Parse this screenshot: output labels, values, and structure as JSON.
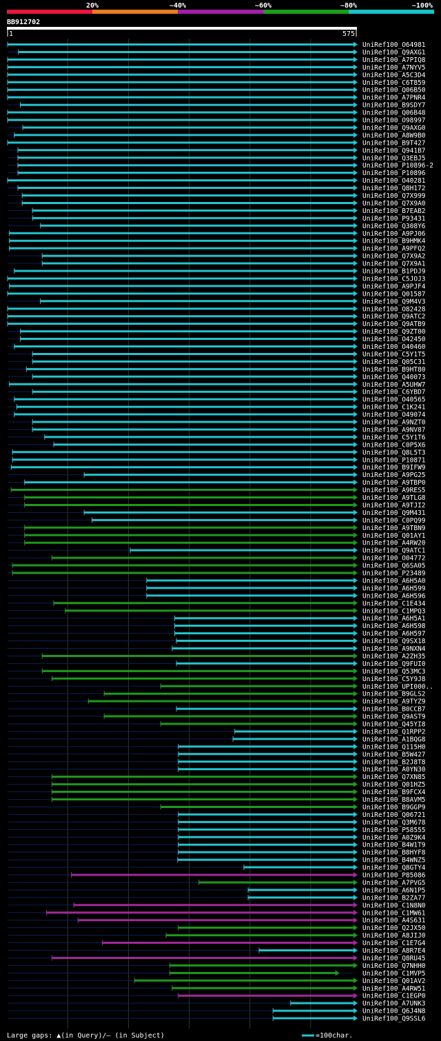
{
  "legend_scale": {
    "segments": [
      {
        "label": "",
        "color": "#e8163c"
      },
      {
        "label": "20%",
        "color": "#e87d1e"
      },
      {
        "label": "~40%",
        "color": "#a020a8"
      },
      {
        "label": "~60%",
        "color": "#1a9e1a"
      },
      {
        "label": "~80%",
        "color": "#19c3c8"
      }
    ],
    "end_label": "~100%"
  },
  "query": {
    "name": "BB912702",
    "start": "1",
    "end": "575",
    "length": 575
  },
  "colors": {
    "cyan": "#22c4d0",
    "green": "#1d9a1d",
    "magenta": "#a1289c",
    "track": "#0b1f58",
    "grid": "#2a3a2a"
  },
  "footer": {
    "gaps_text": "Large gaps: ▲(in Query)/— (in Subject)",
    "scale_text": "=100char."
  },
  "chart_data": {
    "type": "alignment",
    "x_range": [
      1,
      575
    ],
    "hits": [
      {
        "id": "UniRef100_O64981",
        "start": 1,
        "end": 575,
        "c": "cyan"
      },
      {
        "id": "UniRef100_Q9AXG1",
        "start": 19,
        "end": 575,
        "c": "cyan"
      },
      {
        "id": "UniRef100_A7PIQ8",
        "start": 1,
        "end": 575,
        "c": "cyan"
      },
      {
        "id": "UniRef100_A7NYV5",
        "start": 1,
        "end": 575,
        "c": "cyan"
      },
      {
        "id": "UniRef100_A5C3D4",
        "start": 1,
        "end": 575,
        "c": "cyan"
      },
      {
        "id": "UniRef100_C6T859",
        "start": 1,
        "end": 575,
        "c": "cyan"
      },
      {
        "id": "UniRef100_Q06B50",
        "start": 1,
        "end": 575,
        "c": "cyan"
      },
      {
        "id": "UniRef100_A7PNR4",
        "start": 1,
        "end": 575,
        "c": "cyan"
      },
      {
        "id": "UniRef100_B9SDY7",
        "start": 22,
        "end": 575,
        "c": "cyan"
      },
      {
        "id": "UniRef100_Q06B48",
        "start": 1,
        "end": 575,
        "c": "cyan"
      },
      {
        "id": "UniRef100_O98997",
        "start": 1,
        "end": 575,
        "c": "cyan"
      },
      {
        "id": "UniRef100_Q9AXG0",
        "start": 26,
        "end": 575,
        "c": "cyan"
      },
      {
        "id": "UniRef100_A8W9B0",
        "start": 12,
        "end": 575,
        "c": "cyan"
      },
      {
        "id": "UniRef100_B9T427",
        "start": 1,
        "end": 575,
        "c": "cyan"
      },
      {
        "id": "UniRef100_Q941B7",
        "start": 18,
        "end": 575,
        "c": "cyan"
      },
      {
        "id": "UniRef100_Q3EBJ5",
        "start": 18,
        "end": 575,
        "c": "cyan"
      },
      {
        "id": "UniRef100_P10896-2",
        "start": 18,
        "end": 575,
        "c": "cyan"
      },
      {
        "id": "UniRef100_P10896",
        "start": 18,
        "end": 575,
        "c": "cyan"
      },
      {
        "id": "UniRef100_O40281",
        "start": 1,
        "end": 575,
        "c": "cyan"
      },
      {
        "id": "UniRef100_Q8H172",
        "start": 18,
        "end": 575,
        "c": "cyan"
      },
      {
        "id": "UniRef100_Q7X999",
        "start": 25,
        "end": 575,
        "c": "cyan"
      },
      {
        "id": "UniRef100_Q7X9A0",
        "start": 25,
        "end": 575,
        "c": "cyan"
      },
      {
        "id": "UniRef100_B7EAB2",
        "start": 42,
        "end": 575,
        "c": "cyan"
      },
      {
        "id": "UniRef100_P93431",
        "start": 42,
        "end": 575,
        "c": "cyan"
      },
      {
        "id": "UniRef100_Q308Y6",
        "start": 55,
        "end": 575,
        "c": "cyan"
      },
      {
        "id": "UniRef100_A9PJ06",
        "start": 4,
        "end": 575,
        "c": "cyan"
      },
      {
        "id": "UniRef100_B9HMK4",
        "start": 4,
        "end": 575,
        "c": "cyan"
      },
      {
        "id": "UniRef100_A9PFQ2",
        "start": 4,
        "end": 575,
        "c": "cyan"
      },
      {
        "id": "UniRef100_Q7X9A2",
        "start": 58,
        "end": 575,
        "c": "cyan"
      },
      {
        "id": "UniRef100_Q7X9A1",
        "start": 58,
        "end": 575,
        "c": "cyan"
      },
      {
        "id": "UniRef100_B1PDJ9",
        "start": 12,
        "end": 575,
        "c": "cyan"
      },
      {
        "id": "UniRef100_C5JOJ3",
        "start": 1,
        "end": 575,
        "c": "cyan"
      },
      {
        "id": "UniRef100_A9PJF4",
        "start": 4,
        "end": 575,
        "c": "cyan"
      },
      {
        "id": "UniRef100_Q01587",
        "start": 1,
        "end": 575,
        "c": "cyan"
      },
      {
        "id": "UniRef100_Q9M4V3",
        "start": 55,
        "end": 575,
        "c": "cyan"
      },
      {
        "id": "UniRef100_O82428",
        "start": 1,
        "end": 575,
        "c": "cyan"
      },
      {
        "id": "UniRef100_Q9ATC2",
        "start": 1,
        "end": 575,
        "c": "cyan"
      },
      {
        "id": "UniRef100_Q9ATB9",
        "start": 1,
        "end": 575,
        "c": "cyan"
      },
      {
        "id": "UniRef100_Q9ZT00",
        "start": 22,
        "end": 575,
        "c": "cyan"
      },
      {
        "id": "UniRef100_O42450",
        "start": 22,
        "end": 575,
        "c": "cyan"
      },
      {
        "id": "UniRef100_O40460",
        "start": 12,
        "end": 575,
        "c": "cyan"
      },
      {
        "id": "UniRef100_C5Y1T5",
        "start": 42,
        "end": 575,
        "c": "cyan"
      },
      {
        "id": "UniRef100_Q05C31",
        "start": 42,
        "end": 575,
        "c": "cyan"
      },
      {
        "id": "UniRef100_B9HT80",
        "start": 32,
        "end": 575,
        "c": "cyan"
      },
      {
        "id": "UniRef100_Q40073",
        "start": 42,
        "end": 575,
        "c": "cyan"
      },
      {
        "id": "UniRef100_A5UHW7",
        "start": 4,
        "end": 575,
        "c": "cyan"
      },
      {
        "id": "UniRef100_C6YBD7",
        "start": 42,
        "end": 575,
        "c": "cyan"
      },
      {
        "id": "UniRef100_O40565",
        "start": 12,
        "end": 575,
        "c": "cyan"
      },
      {
        "id": "UniRef100_C1K241",
        "start": 16,
        "end": 575,
        "c": "cyan"
      },
      {
        "id": "UniRef100_O49074",
        "start": 12,
        "end": 575,
        "c": "cyan"
      },
      {
        "id": "UniRef100_A9NZT0",
        "start": 42,
        "end": 575,
        "c": "cyan"
      },
      {
        "id": "UniRef100_A9NV87",
        "start": 42,
        "end": 575,
        "c": "cyan"
      },
      {
        "id": "UniRef100_C5Y1T6",
        "start": 62,
        "end": 575,
        "c": "cyan"
      },
      {
        "id": "UniRef100_C0P5X6",
        "start": 77,
        "end": 575,
        "c": "cyan"
      },
      {
        "id": "UniRef100_Q8L5T3",
        "start": 9,
        "end": 575,
        "c": "cyan"
      },
      {
        "id": "UniRef100_P10871",
        "start": 9,
        "end": 575,
        "c": "cyan"
      },
      {
        "id": "UniRef100_B9IFW9",
        "start": 7,
        "end": 575,
        "c": "cyan"
      },
      {
        "id": "UniRef100_A9PG25",
        "start": 127,
        "end": 575,
        "c": "cyan"
      },
      {
        "id": "UniRef100_A9TBP0",
        "start": 29,
        "end": 575,
        "c": "cyan"
      },
      {
        "id": "UniRef100_A9RES5",
        "start": 7,
        "end": 575,
        "c": "green"
      },
      {
        "id": "UniRef100_A9TLG8",
        "start": 29,
        "end": 575,
        "c": "green"
      },
      {
        "id": "UniRef100_A9TJI2",
        "start": 29,
        "end": 575,
        "c": "green"
      },
      {
        "id": "UniRef100_Q9M431",
        "start": 127,
        "end": 575,
        "c": "cyan"
      },
      {
        "id": "UniRef100_C0PQ99",
        "start": 140,
        "end": 575,
        "c": "cyan"
      },
      {
        "id": "UniRef100_A9TBN9",
        "start": 29,
        "end": 575,
        "c": "green"
      },
      {
        "id": "UniRef100_Q01AY1",
        "start": 29,
        "end": 575,
        "c": "green"
      },
      {
        "id": "UniRef100_A4RW20",
        "start": 29,
        "end": 575,
        "c": "green"
      },
      {
        "id": "UniRef100_Q9ATC1",
        "start": 203,
        "end": 575,
        "c": "cyan"
      },
      {
        "id": "UniRef100_O04772",
        "start": 74,
        "end": 575,
        "c": "green"
      },
      {
        "id": "UniRef100_Q6SA05",
        "start": 9,
        "end": 575,
        "c": "green"
      },
      {
        "id": "UniRef100_P23489",
        "start": 9,
        "end": 575,
        "c": "green"
      },
      {
        "id": "UniRef100_A6H5A0",
        "start": 230,
        "end": 575,
        "c": "cyan"
      },
      {
        "id": "UniRef100_A6H599",
        "start": 230,
        "end": 575,
        "c": "cyan"
      },
      {
        "id": "UniRef100_A6H596",
        "start": 230,
        "end": 575,
        "c": "cyan"
      },
      {
        "id": "UniRef100_C1E434",
        "start": 77,
        "end": 575,
        "c": "green"
      },
      {
        "id": "UniRef100_C1MPQ3",
        "start": 96,
        "end": 575,
        "c": "green"
      },
      {
        "id": "UniRef100_A6H5A1",
        "start": 276,
        "end": 575,
        "c": "cyan"
      },
      {
        "id": "UniRef100_A6H598",
        "start": 276,
        "end": 575,
        "c": "cyan"
      },
      {
        "id": "UniRef100_A6H597",
        "start": 276,
        "end": 575,
        "c": "cyan"
      },
      {
        "id": "UniRef100_Q9SX18",
        "start": 279,
        "end": 575,
        "c": "cyan"
      },
      {
        "id": "UniRef100_A9NXN4",
        "start": 272,
        "end": 575,
        "c": "cyan"
      },
      {
        "id": "UniRef100_A2ZH35",
        "start": 58,
        "end": 575,
        "c": "green"
      },
      {
        "id": "UniRef100_Q9FUI0",
        "start": 279,
        "end": 575,
        "c": "cyan"
      },
      {
        "id": "UniRef100_Q53MC3",
        "start": 58,
        "end": 575,
        "c": "green"
      },
      {
        "id": "UniRef100_C5Y9J8",
        "start": 74,
        "end": 575,
        "c": "green"
      },
      {
        "id": "UniRef100_UPI000..",
        "start": 253,
        "end": 575,
        "c": "green"
      },
      {
        "id": "UniRef100_B9GLS2",
        "start": 160,
        "end": 575,
        "c": "green"
      },
      {
        "id": "UniRef100_A9TYZ9",
        "start": 134,
        "end": 575,
        "c": "green"
      },
      {
        "id": "UniRef100_B0CCB7",
        "start": 279,
        "end": 575,
        "c": "cyan"
      },
      {
        "id": "UniRef100_Q9AST9",
        "start": 160,
        "end": 575,
        "c": "green"
      },
      {
        "id": "UniRef100_Q45YI8",
        "start": 253,
        "end": 575,
        "c": "green"
      },
      {
        "id": "UniRef100_Q1RPP2",
        "start": 375,
        "end": 575,
        "c": "cyan"
      },
      {
        "id": "UniRef100_A1BQG8",
        "start": 372,
        "end": 575,
        "c": "cyan"
      },
      {
        "id": "UniRef100_Q115H0",
        "start": 282,
        "end": 575,
        "c": "cyan"
      },
      {
        "id": "UniRef100_B5W427",
        "start": 282,
        "end": 575,
        "c": "cyan"
      },
      {
        "id": "UniRef100_B2J8T8",
        "start": 282,
        "end": 575,
        "c": "cyan"
      },
      {
        "id": "UniRef100_A0YN30",
        "start": 282,
        "end": 575,
        "c": "cyan"
      },
      {
        "id": "UniRef100_Q7XN85",
        "start": 74,
        "end": 575,
        "c": "green"
      },
      {
        "id": "UniRef100_Q01HZ5",
        "start": 74,
        "end": 575,
        "c": "green"
      },
      {
        "id": "UniRef100_B9FCX4",
        "start": 74,
        "end": 575,
        "c": "green"
      },
      {
        "id": "UniRef100_B8AVM5",
        "start": 74,
        "end": 575,
        "c": "green"
      },
      {
        "id": "UniRef100_B9GGP9",
        "start": 253,
        "end": 575,
        "c": "green"
      },
      {
        "id": "UniRef100_Q06721",
        "start": 282,
        "end": 575,
        "c": "cyan"
      },
      {
        "id": "UniRef100_Q3M678",
        "start": 282,
        "end": 575,
        "c": "cyan"
      },
      {
        "id": "UniRef100_P58555",
        "start": 282,
        "end": 575,
        "c": "cyan"
      },
      {
        "id": "UniRef100_A0Z9K4",
        "start": 282,
        "end": 575,
        "c": "cyan"
      },
      {
        "id": "UniRef100_B4W1T9",
        "start": 282,
        "end": 575,
        "c": "cyan"
      },
      {
        "id": "UniRef100_B8HYF8",
        "start": 282,
        "end": 575,
        "c": "cyan"
      },
      {
        "id": "UniRef100_B4WNZ5",
        "start": 281,
        "end": 575,
        "c": "cyan"
      },
      {
        "id": "UniRef100_Q8GTY4",
        "start": 390,
        "end": 575,
        "c": "cyan"
      },
      {
        "id": "UniRef100_P85086",
        "start": 106,
        "end": 575,
        "c": "magenta"
      },
      {
        "id": "UniRef100_A7PVG5",
        "start": 316,
        "end": 575,
        "c": "green"
      },
      {
        "id": "UniRef100_A6N1P5",
        "start": 397,
        "end": 575,
        "c": "cyan"
      },
      {
        "id": "UniRef100_B2ZA77",
        "start": 397,
        "end": 575,
        "c": "cyan"
      },
      {
        "id": "UniRef100_C1N8N0",
        "start": 110,
        "end": 575,
        "c": "magenta"
      },
      {
        "id": "UniRef100_C1MW61",
        "start": 65,
        "end": 575,
        "c": "magenta"
      },
      {
        "id": "UniRef100_A4S631",
        "start": 117,
        "end": 575,
        "c": "magenta"
      },
      {
        "id": "UniRef100_Q2JX50",
        "start": 282,
        "end": 575,
        "c": "green"
      },
      {
        "id": "UniRef100_A8JIJ0",
        "start": 262,
        "end": 575,
        "c": "green"
      },
      {
        "id": "UniRef100_C1E7G4",
        "start": 157,
        "end": 575,
        "c": "magenta"
      },
      {
        "id": "UniRef100_A8R7E4",
        "start": 415,
        "end": 575,
        "c": "cyan"
      },
      {
        "id": "UniRef100_Q8RU45",
        "start": 74,
        "end": 575,
        "c": "magenta"
      },
      {
        "id": "UniRef100_Q7NHH0",
        "start": 268,
        "end": 575,
        "c": "green"
      },
      {
        "id": "UniRef100_C1MVP5",
        "start": 268,
        "end": 545,
        "c": "green"
      },
      {
        "id": "UniRef100_Q01AV2",
        "start": 210,
        "end": 575,
        "c": "green"
      },
      {
        "id": "UniRef100_A4RW51",
        "start": 272,
        "end": 575,
        "c": "green"
      },
      {
        "id": "UniRef100_C1EGP0",
        "start": 282,
        "end": 575,
        "c": "magenta"
      },
      {
        "id": "UniRef100_A7UNK3",
        "start": 467,
        "end": 575,
        "c": "cyan"
      },
      {
        "id": "UniRef100_Q6J4N8",
        "start": 438,
        "end": 575,
        "c": "cyan"
      },
      {
        "id": "UniRef100_Q9SSL6",
        "start": 438,
        "end": 575,
        "c": "cyan"
      }
    ]
  }
}
